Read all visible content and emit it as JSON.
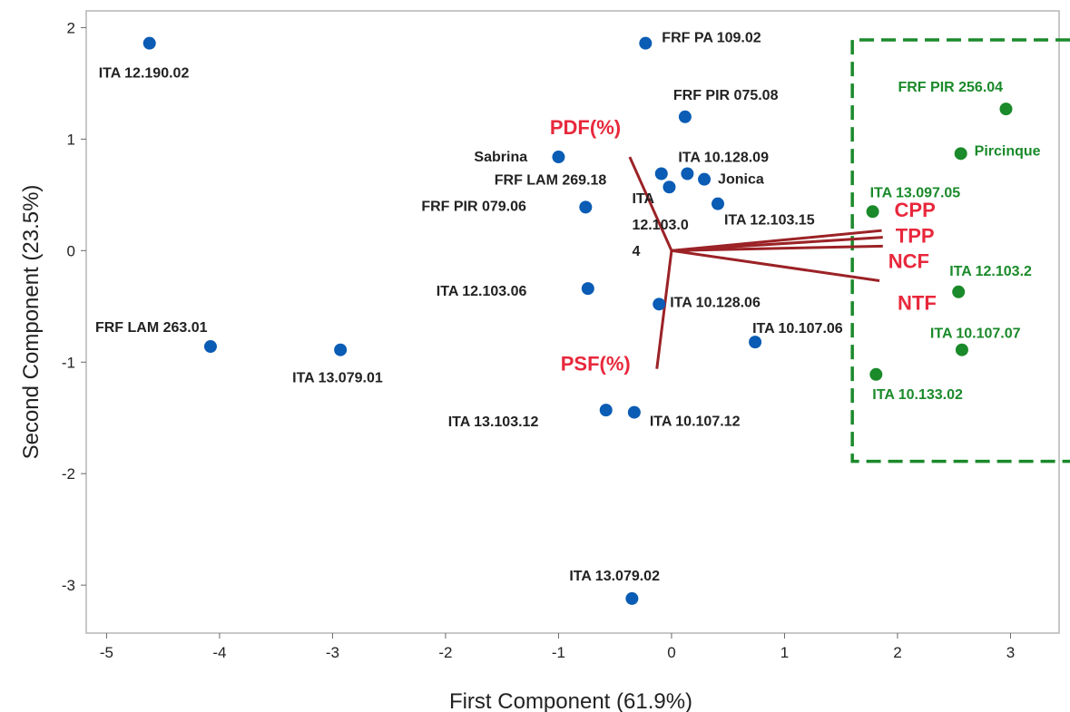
{
  "chart_data": {
    "type": "scatter",
    "title": "",
    "xlabel": "First Component (61.9%)",
    "ylabel": "Second Component (23.5%)",
    "xlim": [
      -5.18,
      3.43
    ],
    "ylim": [
      -3.43,
      2.15
    ],
    "xticks": [
      -5,
      -4,
      -3,
      -2,
      -1,
      0,
      1,
      2,
      3
    ],
    "yticks": [
      -3,
      -2,
      -1,
      0,
      1,
      2
    ],
    "grid": false,
    "legend": "none",
    "colors": {
      "blue": "#0a5cb4",
      "green": "#1a8a2a",
      "vector": "#9b2226",
      "vector_label": "#e8283c",
      "text": "#222222"
    },
    "points": [
      {
        "label": "ITA 12.190.02",
        "x": -4.62,
        "y": 1.86,
        "group": "blue"
      },
      {
        "label": "FRF PA 109.02",
        "x": -0.23,
        "y": 1.86,
        "group": "blue"
      },
      {
        "label": "FRF PIR 075.08",
        "x": 0.12,
        "y": 1.2,
        "group": "blue"
      },
      {
        "label": "Sabrina",
        "x": -1.0,
        "y": 0.84,
        "group": "blue"
      },
      {
        "label": "ITA 10.128.09",
        "x": 0.14,
        "y": 0.69,
        "group": "blue"
      },
      {
        "label": "FRF LAM 269.18",
        "x": -0.09,
        "y": 0.69,
        "group": "blue"
      },
      {
        "label": "Jonica",
        "x": 0.29,
        "y": 0.64,
        "group": "blue"
      },
      {
        "label": "ITA 12.103.04",
        "x": -0.02,
        "y": 0.57,
        "group": "blue"
      },
      {
        "label": "FRF PIR 079.06",
        "x": -0.76,
        "y": 0.39,
        "group": "blue"
      },
      {
        "label": "ITA 12.103.15",
        "x": 0.41,
        "y": 0.42,
        "group": "blue"
      },
      {
        "label": "ITA 12.103.06",
        "x": -0.74,
        "y": -0.34,
        "group": "blue"
      },
      {
        "label": "ITA 10.128.06",
        "x": -0.11,
        "y": -0.48,
        "group": "blue"
      },
      {
        "label": "ITA 10.107.06",
        "x": 0.74,
        "y": -0.82,
        "group": "blue"
      },
      {
        "label": "FRF LAM 263.01",
        "x": -4.08,
        "y": -0.86,
        "group": "blue"
      },
      {
        "label": "ITA 13.079.01",
        "x": -2.93,
        "y": -0.89,
        "group": "blue"
      },
      {
        "label": "ITA 13.103.12",
        "x": -0.58,
        "y": -1.43,
        "group": "blue"
      },
      {
        "label": "ITA 10.107.12",
        "x": -0.33,
        "y": -1.45,
        "group": "blue"
      },
      {
        "label": "ITA 13.079.02",
        "x": -0.35,
        "y": -3.12,
        "group": "blue"
      },
      {
        "label": "FRF PIR 256.04",
        "x": 2.96,
        "y": 1.27,
        "group": "green"
      },
      {
        "label": "Pircinque",
        "x": 2.56,
        "y": 0.87,
        "group": "green"
      },
      {
        "label": "ITA 13.097.05",
        "x": 1.78,
        "y": 0.35,
        "group": "green"
      },
      {
        "label": "ITA 12.103.2",
        "x": 2.54,
        "y": -0.37,
        "group": "green"
      },
      {
        "label": "ITA 10.107.07",
        "x": 2.57,
        "y": -0.89,
        "group": "green"
      },
      {
        "label": "ITA 10.133.02",
        "x": 1.81,
        "y": -1.11,
        "group": "green"
      }
    ],
    "vectors": [
      {
        "label": "PDF(%)",
        "x": -0.37,
        "y": 0.84
      },
      {
        "label": "PSF(%)",
        "x": -0.13,
        "y": -1.06
      },
      {
        "label": "CPP",
        "x": 1.86,
        "y": 0.18
      },
      {
        "label": "TPP",
        "x": 1.87,
        "y": 0.12
      },
      {
        "label": "NCF",
        "x": 1.87,
        "y": 0.04
      },
      {
        "label": "NTF",
        "x": 1.84,
        "y": -0.27
      }
    ],
    "highlight_region": {
      "x0": 1.6,
      "x1": 3.43,
      "y0": -1.89,
      "y1": 1.89,
      "style": "dashed",
      "color": "#1a8a2a"
    }
  }
}
